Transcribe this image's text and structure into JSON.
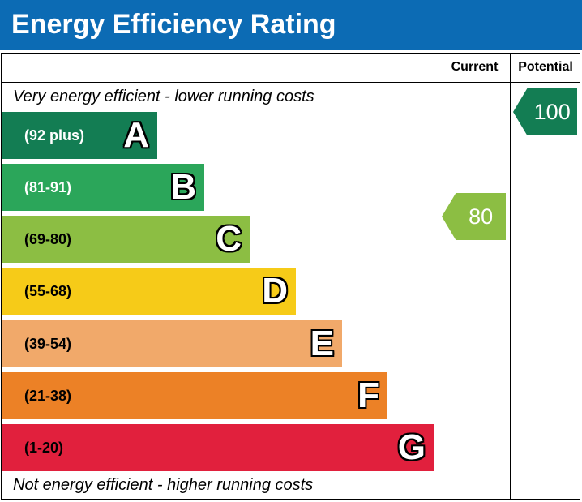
{
  "title": "Energy Efficiency Rating",
  "columns": {
    "current": "Current",
    "potential": "Potential"
  },
  "notes": {
    "top": "Very energy efficient - lower running costs",
    "bottom": "Not energy efficient - higher running costs"
  },
  "bands": [
    {
      "letter": "A",
      "range": "(92 plus)",
      "color": "#137d53",
      "text_color": "#ffffff"
    },
    {
      "letter": "B",
      "range": "(81-91)",
      "color": "#2ba65a",
      "text_color": "#ffffff"
    },
    {
      "letter": "C",
      "range": "(69-80)",
      "color": "#8cbe43",
      "text_color": "#000000"
    },
    {
      "letter": "D",
      "range": "(55-68)",
      "color": "#f6cb18",
      "text_color": "#000000"
    },
    {
      "letter": "E",
      "range": "(39-54)",
      "color": "#f1a96a",
      "text_color": "#000000"
    },
    {
      "letter": "F",
      "range": "(21-38)",
      "color": "#ec8126",
      "text_color": "#000000"
    },
    {
      "letter": "G",
      "range": "(1-20)",
      "color": "#e1203d",
      "text_color": "#000000"
    }
  ],
  "ratings": {
    "current": {
      "value": "80",
      "band": "C",
      "color": "#8cbe43"
    },
    "potential": {
      "value": "100",
      "band": "A",
      "color": "#137d53"
    }
  }
}
